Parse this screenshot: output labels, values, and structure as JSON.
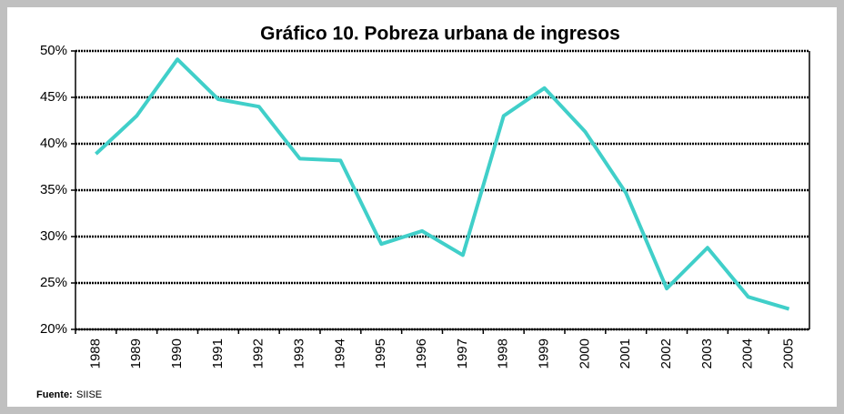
{
  "chart_data": {
    "type": "line",
    "title": "Gráfico 10. Pobreza urbana de ingresos",
    "categories": [
      "1988",
      "1989",
      "1990",
      "1991",
      "1992",
      "1993",
      "1994",
      "1995",
      "1996",
      "1997",
      "1998",
      "1999",
      "2000",
      "2001",
      "2002",
      "2003",
      "2004",
      "2005"
    ],
    "series": [
      {
        "name": "Pobreza urbana",
        "color": "#40cfc9",
        "values": [
          38.9,
          43,
          49.1,
          44.8,
          44,
          38.4,
          38.2,
          29.2,
          30.6,
          28,
          43,
          46,
          41.3,
          34.7,
          24.4,
          28.8,
          23.5,
          22.2
        ]
      }
    ],
    "ylim": [
      20,
      50
    ],
    "yticks": [
      {
        "value": 20,
        "label": "20%"
      },
      {
        "value": 25,
        "label": "25%"
      },
      {
        "value": 30,
        "label": "30%"
      },
      {
        "value": 35,
        "label": "35%"
      },
      {
        "value": 40,
        "label": "40%"
      },
      {
        "value": 45,
        "label": "45%"
      },
      {
        "value": 50,
        "label": "50%"
      }
    ],
    "grid": true,
    "source_label": "Fuente:",
    "source": "SIISE"
  }
}
